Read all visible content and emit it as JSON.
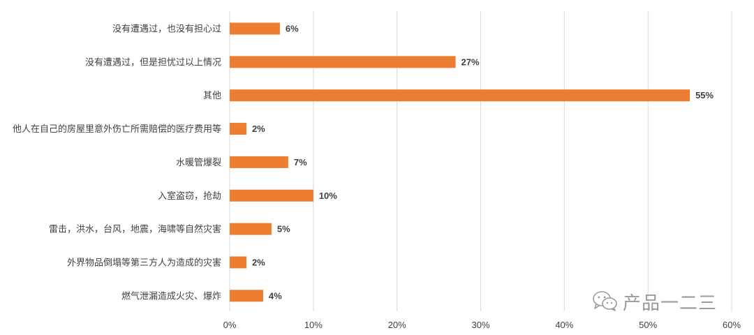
{
  "chart_data": {
    "type": "bar",
    "orientation": "horizontal",
    "categories": [
      "没有遭遇过，也没有担心过",
      "没有遭遇过，但是担忧过以上情况",
      "其他",
      "他人在自己的房屋里意外伤亡所需赔偿的医疗费用等",
      "水暖管爆裂",
      "入室盗窃，抢劫",
      "雷击，洪水，台风，地震，海啸等自然灾害",
      "外界物品倒塌等第三方人为造成的灾害",
      "燃气泄漏造成火灾、爆炸"
    ],
    "values": [
      6,
      27,
      55,
      2,
      7,
      10,
      5,
      2,
      4
    ],
    "value_labels": [
      "6%",
      "27%",
      "55%",
      "2%",
      "7%",
      "10%",
      "5%",
      "2%",
      "4%"
    ],
    "xlim": [
      0,
      60
    ],
    "x_ticks": [
      0,
      10,
      20,
      30,
      40,
      50,
      60
    ],
    "x_tick_labels": [
      "0%",
      "10%",
      "20%",
      "30%",
      "40%",
      "50%",
      "60%"
    ],
    "grid": "vertical",
    "bar_color": "#ED7D31",
    "grid_color": "#D9D9D9"
  },
  "watermark": {
    "text": "产品一二三",
    "icon": "wechat-icon"
  }
}
